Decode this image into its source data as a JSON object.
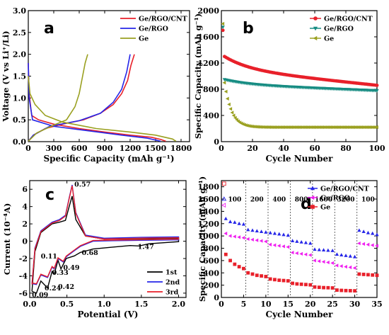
{
  "colors": {
    "red": "#e8202a",
    "blue": "#2626e8",
    "olive": "#9aa020",
    "teal": "#168c82",
    "magenta": "#f020f0",
    "black": "#000000"
  },
  "chart_data": [
    {
      "id": "a",
      "type": "line",
      "panel_label": "a",
      "xlabel": "Specific Capacity (mAh g⁻¹)",
      "ylabel": "Voltage (V vs Li⁺/Li)",
      "xlim": [
        0,
        1900
      ],
      "ylim": [
        0,
        3.0
      ],
      "xticks": [
        "0",
        "300",
        "600",
        "900",
        "1200",
        "1500",
        "1800"
      ],
      "yticks": [
        "0.0",
        "0.5",
        "1.0",
        "1.5",
        "2.0",
        "2.5",
        "3.0"
      ],
      "legend_position": "top-right",
      "series": [
        {
          "name": "Ge/RGO/CNT",
          "color": "#e8202a",
          "discharge": [
            [
              0,
              1.8
            ],
            [
              10,
              1.1
            ],
            [
              40,
              0.6
            ],
            [
              120,
              0.5
            ],
            [
              300,
              0.4
            ],
            [
              600,
              0.3
            ],
            [
              900,
              0.22
            ],
            [
              1200,
              0.15
            ],
            [
              1450,
              0.1
            ],
            [
              1560,
              0.05
            ],
            [
              1620,
              0.01
            ]
          ],
          "charge": [
            [
              0,
              0.01
            ],
            [
              60,
              0.15
            ],
            [
              200,
              0.3
            ],
            [
              400,
              0.4
            ],
            [
              650,
              0.5
            ],
            [
              850,
              0.65
            ],
            [
              1000,
              0.85
            ],
            [
              1100,
              1.1
            ],
            [
              1170,
              1.4
            ],
            [
              1210,
              1.75
            ],
            [
              1250,
              2.0
            ]
          ]
        },
        {
          "name": "Ge/RGO",
          "color": "#2626e8",
          "discharge": [
            [
              0,
              1.8
            ],
            [
              10,
              1.0
            ],
            [
              50,
              0.5
            ],
            [
              300,
              0.35
            ],
            [
              700,
              0.25
            ],
            [
              1100,
              0.15
            ],
            [
              1400,
              0.08
            ],
            [
              1560,
              0.01
            ]
          ],
          "charge": [
            [
              0,
              0.01
            ],
            [
              60,
              0.15
            ],
            [
              250,
              0.35
            ],
            [
              600,
              0.48
            ],
            [
              850,
              0.65
            ],
            [
              1000,
              0.9
            ],
            [
              1100,
              1.2
            ],
            [
              1160,
              1.6
            ],
            [
              1200,
              2.0
            ]
          ]
        },
        {
          "name": "Ge",
          "color": "#9aa020",
          "discharge": [
            [
              0,
              1.5
            ],
            [
              20,
              1.1
            ],
            [
              80,
              0.85
            ],
            [
              200,
              0.6
            ],
            [
              400,
              0.45
            ],
            [
              800,
              0.3
            ],
            [
              1200,
              0.22
            ],
            [
              1500,
              0.15
            ],
            [
              1700,
              0.06
            ],
            [
              1740,
              0.01
            ]
          ],
          "charge": [
            [
              0,
              0.01
            ],
            [
              100,
              0.2
            ],
            [
              300,
              0.38
            ],
            [
              450,
              0.5
            ],
            [
              550,
              0.8
            ],
            [
              600,
              1.1
            ],
            [
              640,
              1.5
            ],
            [
              670,
              1.8
            ],
            [
              700,
              2.0
            ]
          ]
        }
      ]
    },
    {
      "id": "b",
      "type": "scatter",
      "panel_label": "b",
      "xlabel": "Cycle Number",
      "ylabel": "Specific Capacity (mAh g⁻¹)",
      "xlim": [
        0,
        100
      ],
      "ylim": [
        0,
        2000
      ],
      "xticks": [
        "0",
        "20",
        "40",
        "60",
        "80",
        "100"
      ],
      "yticks": [
        "0",
        "400",
        "800",
        "1200",
        "1600",
        "2000"
      ],
      "legend_position": "top-right",
      "series": [
        {
          "name": "Ge/RGO/CNT",
          "color": "#e8202a",
          "marker": "circle",
          "start": 1700,
          "second": 1300,
          "end": 860,
          "decay": "slow"
        },
        {
          "name": "Ge/RGO",
          "color": "#168c82",
          "marker": "triangle-down",
          "start": 1750,
          "second": 950,
          "end": 780,
          "decay": "slow"
        },
        {
          "name": "Ge",
          "color": "#9aa020",
          "marker": "triangle-left",
          "start": 1800,
          "second": 900,
          "end": 220,
          "decay": "fast"
        }
      ]
    },
    {
      "id": "c",
      "type": "line",
      "panel_label": "c",
      "xlabel": "Potential (V)",
      "ylabel": "Current (10⁻⁴A)",
      "xlim": [
        0,
        2.1
      ],
      "ylim": [
        -6.5,
        7
      ],
      "xticks": [
        "0.0",
        "0.5",
        "1.0",
        "1.5",
        "2.0"
      ],
      "yticks": [
        "-6",
        "-4",
        "-2",
        "0",
        "2",
        "4",
        "6"
      ],
      "legend_position": "bottom-right",
      "annotations": [
        "0.57",
        "0.11",
        "0.68",
        "1.47",
        "0.33",
        "0.49",
        "0.24",
        "0.42",
        "0.09"
      ],
      "series": [
        {
          "name": "1st",
          "color": "#000000"
        },
        {
          "name": "2nd",
          "color": "#2626e8"
        },
        {
          "name": "3rd",
          "color": "#e8202a"
        }
      ]
    },
    {
      "id": "d",
      "type": "scatter",
      "panel_label": "d",
      "xlabel": "Cycle Number",
      "ylabel": "Specific Capacity (mAh g⁻¹)",
      "xlim": [
        0,
        35
      ],
      "ylim": [
        0,
        1900
      ],
      "xticks": [
        "0",
        "5",
        "10",
        "15",
        "20",
        "25",
        "30",
        "35"
      ],
      "yticks": [
        "0",
        "200",
        "400",
        "600",
        "800",
        "1000",
        "1200",
        "1400",
        "1600",
        "1800"
      ],
      "legend_position": "top-right",
      "rate_labels": [
        "100",
        "200",
        "400",
        "800",
        "1600",
        "3200",
        "100"
      ],
      "series": [
        {
          "name": "Ge/RGO/CNT",
          "color": "#2626e8",
          "marker": "triangle-up",
          "values": [
            1600,
            1280,
            1230,
            1220,
            1200,
            1190,
            1100,
            1090,
            1080,
            1070,
            1060,
            1050,
            1040,
            1030,
            1020,
            1010,
            920,
            910,
            900,
            890,
            880,
            780,
            775,
            770,
            765,
            760,
            700,
            690,
            680,
            670,
            660,
            1090,
            1070,
            1050,
            1040,
            1020
          ]
        },
        {
          "name": "Ge/RGO",
          "color": "#f020f0",
          "marker": "triangle-left",
          "values": [
            1500,
            1040,
            1000,
            990,
            980,
            970,
            950,
            940,
            930,
            920,
            910,
            860,
            850,
            840,
            830,
            820,
            730,
            720,
            710,
            700,
            690,
            600,
            590,
            580,
            570,
            560,
            520,
            510,
            500,
            490,
            480,
            880,
            870,
            860,
            850,
            840
          ]
        },
        {
          "name": "Ge",
          "color": "#e8202a",
          "marker": "square",
          "values": [
            1850,
            700,
            600,
            540,
            500,
            470,
            400,
            380,
            360,
            350,
            340,
            300,
            290,
            280,
            275,
            270,
            230,
            220,
            215,
            210,
            205,
            170,
            165,
            160,
            158,
            155,
            120,
            115,
            112,
            110,
            108,
            380,
            375,
            370,
            365,
            360
          ]
        }
      ]
    }
  ]
}
